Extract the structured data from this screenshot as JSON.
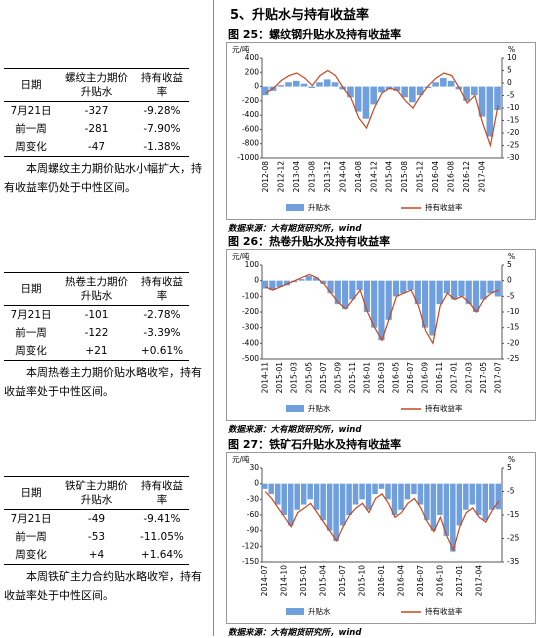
{
  "section_title": "5、升贴水与持有收益率",
  "tables": [
    {
      "header": [
        "日期",
        "螺纹主力期价升贴水",
        "持有收益率"
      ],
      "rows": [
        [
          "7月21日",
          "-327",
          "-9.28%"
        ],
        [
          "前一周",
          "-281",
          "-7.90%"
        ],
        [
          "周变化",
          "-47",
          "-1.38%"
        ]
      ],
      "note": "本周螺纹主力期价贴水小幅扩大，持有收益率仍处于中性区间。"
    },
    {
      "header": [
        "日期",
        "热卷主力期价升贴水",
        "持有收益率"
      ],
      "rows": [
        [
          "7月21日",
          "-101",
          "-2.78%"
        ],
        [
          "前一周",
          "-122",
          "-3.39%"
        ],
        [
          "周变化",
          "+21",
          "+0.61%"
        ]
      ],
      "note": "本周热卷主力期价贴水略收窄，持有收益率处于中性区间。"
    },
    {
      "header": [
        "日期",
        "铁矿主力期价升贴水",
        "持有收益率"
      ],
      "rows": [
        [
          "7月21日",
          "-49",
          "-9.41%"
        ],
        [
          "前一周",
          "-53",
          "-11.05%"
        ],
        [
          "周变化",
          "+4",
          "+1.64%"
        ]
      ],
      "note": "本周铁矿主力合约贴水略收窄，持有收益率处于中性区间。"
    }
  ],
  "chart_data": [
    {
      "type": "combo",
      "title": "图 25：螺纹钢升贴水及持有收益率",
      "y_unit": "元/吨",
      "y2_unit": "%",
      "source": "数据来源：大有期货研究所，wind",
      "categories": [
        "2012-08",
        null,
        "2012-12",
        null,
        "2013-04",
        null,
        "2013-08",
        null,
        "2013-12",
        null,
        "2014-04",
        null,
        "2014-08",
        null,
        "2014-12",
        null,
        "2015-04",
        null,
        "2015-08",
        null,
        "2015-12",
        null,
        "2016-04",
        null,
        "2016-08",
        null,
        "2016-12",
        null,
        "2017-04",
        null,
        null
      ],
      "series": [
        {
          "name": "升贴水",
          "color": "#6f9fdc",
          "values": [
            -120,
            -60,
            20,
            60,
            80,
            40,
            -20,
            60,
            100,
            60,
            -40,
            -150,
            -350,
            -450,
            -250,
            -80,
            -40,
            -60,
            -150,
            -220,
            -120,
            -20,
            60,
            120,
            80,
            -40,
            -200,
            -120,
            -420,
            -700,
            -327
          ]
        },
        {
          "name": "持有收益率",
          "color": "#c8461e",
          "axis": "y2",
          "values": [
            -4,
            -2,
            1,
            3,
            4,
            2,
            -1,
            3,
            5,
            3,
            -2,
            -6,
            -14,
            -18,
            -10,
            -4,
            -2,
            -3,
            -7,
            -10,
            -5,
            -1,
            2,
            4,
            3,
            -2,
            -8,
            -5,
            -16,
            -25,
            -9
          ]
        }
      ],
      "ylim": [
        -1000,
        400
      ],
      "yticks": [
        -1000,
        -800,
        -600,
        -400,
        -200,
        0,
        200,
        400
      ],
      "y2lim": [
        -30,
        10
      ],
      "y2ticks": [
        -30,
        -25,
        -20,
        -15,
        -10,
        -5,
        0,
        5,
        10
      ]
    },
    {
      "type": "combo",
      "title": "图 26：热卷升贴水及持有收益率",
      "y_unit": "元/吨",
      "y2_unit": "%",
      "source": "数据来源：大有期货研究所，wind",
      "categories": [
        "2014-11",
        null,
        "2015-01",
        null,
        "2015-03",
        null,
        "2015-05",
        null,
        "2015-07",
        null,
        "2015-09",
        null,
        "2015-11",
        null,
        "2016-01",
        null,
        "2016-03",
        null,
        "2016-05",
        null,
        "2016-07",
        null,
        "2016-09",
        null,
        "2016-11",
        null,
        "2017-01",
        null,
        "2017-03",
        null,
        "2017-05",
        null,
        "2017-07"
      ],
      "series": [
        {
          "name": "升贴水",
          "color": "#6f9fdc",
          "values": [
            -50,
            -60,
            -40,
            -30,
            -10,
            10,
            30,
            20,
            -20,
            -80,
            -150,
            -180,
            -120,
            -60,
            -200,
            -300,
            -380,
            -250,
            -100,
            -80,
            -60,
            -150,
            -300,
            -350,
            -150,
            -80,
            -120,
            -100,
            -150,
            -200,
            -120,
            -80,
            -101
          ]
        },
        {
          "name": "持有收益率",
          "color": "#c8461e",
          "axis": "y2",
          "values": [
            -2,
            -3,
            -2,
            -1,
            0,
            1,
            2,
            1,
            -1,
            -4,
            -7,
            -9,
            -6,
            -3,
            -10,
            -15,
            -19,
            -12,
            -5,
            -4,
            -3,
            -8,
            -16,
            -20,
            -8,
            -4,
            -6,
            -5,
            -7,
            -10,
            -6,
            -4,
            -3
          ]
        }
      ],
      "ylim": [
        -500,
        100
      ],
      "yticks": [
        -500,
        -400,
        -300,
        -200,
        -100,
        0,
        100
      ],
      "y2lim": [
        -25,
        5
      ],
      "y2ticks": [
        -25,
        -20,
        -15,
        -10,
        -5,
        0,
        5
      ]
    },
    {
      "type": "combo",
      "title": "图 27：铁矿石升贴水及持有收益率",
      "y_unit": "元/吨",
      "y2_unit": "%",
      "source": "数据来源：大有期货研究所，wind",
      "categories": [
        "2014-07",
        null,
        null,
        "2014-10",
        null,
        null,
        "2015-01",
        null,
        null,
        "2015-04",
        null,
        null,
        "2015-07",
        null,
        null,
        "2015-10",
        null,
        null,
        "2016-01",
        null,
        null,
        "2016-04",
        null,
        null,
        "2016-07",
        null,
        null,
        "2016-10",
        null,
        null,
        "2017-01",
        null,
        null,
        "2017-04",
        null,
        null,
        null
      ],
      "series": [
        {
          "name": "升贴水",
          "color": "#6f9fdc",
          "values": [
            -10,
            -20,
            -40,
            -60,
            -80,
            -50,
            -40,
            -30,
            -50,
            -70,
            -90,
            -110,
            -80,
            -60,
            -40,
            -30,
            -50,
            -20,
            -10,
            -30,
            -60,
            -50,
            -30,
            -20,
            -40,
            -70,
            -90,
            -60,
            -100,
            -130,
            -80,
            -50,
            -40,
            -60,
            -70,
            -50,
            -49
          ]
        },
        {
          "name": "持有收益率",
          "color": "#c8461e",
          "axis": "y2",
          "values": [
            -5,
            -8,
            -12,
            -16,
            -20,
            -14,
            -12,
            -10,
            -14,
            -18,
            -22,
            -26,
            -20,
            -15,
            -12,
            -10,
            -14,
            -8,
            -6,
            -10,
            -16,
            -14,
            -10,
            -8,
            -12,
            -18,
            -22,
            -16,
            -24,
            -30,
            -20,
            -14,
            -12,
            -16,
            -18,
            -13,
            -9
          ]
        }
      ],
      "ylim": [
        -150,
        30
      ],
      "yticks": [
        -150,
        -120,
        -90,
        -60,
        -30,
        0,
        30
      ],
      "y2lim": [
        -35,
        5
      ],
      "y2ticks": [
        -35,
        -25,
        -15,
        -5,
        5
      ]
    }
  ]
}
